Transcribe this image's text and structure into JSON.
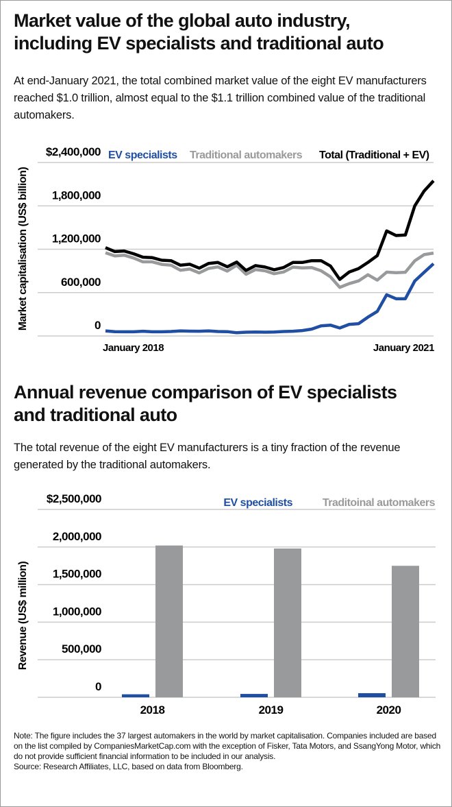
{
  "section1": {
    "title_line1": "Market value of the global auto industry,",
    "title_line2": "including EV specialists and traditional auto",
    "description": "At end-January 2021, the total combined market value of the eight EV manufacturers reached $1.0 trillion, almost equal to the $1.1 trillion combined value of the traditional automakers."
  },
  "section2": {
    "title_line1": "Annual revenue comparison of EV specialists",
    "title_line2": "and traditional auto",
    "description": "The total revenue of the eight EV manufacturers is a tiny fraction of the revenue generated by the traditional automakers."
  },
  "note": "Note: The figure includes the 37 largest automakers in the world by market capitalisation. Companies included are based on the list compiled by CompaniesMarketCap.com with the exception of Fisker, Tata Motors, and SsangYong Motor, which do not provide sufficient financial information to be included in our analysis.",
  "source": "Source: Research Affiliates, LLC, based on data from Bloomberg.",
  "colors": {
    "ev": "#1f4ea3",
    "traditional": "#999a9c",
    "total": "#000000",
    "grid": "#cccccc"
  },
  "chart_data": [
    {
      "type": "line",
      "ylabel": "Market capitalisation (US$ billion)",
      "ylim": [
        0,
        2400000
      ],
      "yticks": [
        0,
        600000,
        1200000,
        1800000,
        2400000
      ],
      "ytick_labels": [
        "0",
        "600,000",
        "1,200,000",
        "1,800,000",
        "$2,400,000"
      ],
      "x_labels": [
        "January 2018",
        "January 2021"
      ],
      "legend_position": "top",
      "grid": true,
      "series": [
        {
          "name": "EV specialists",
          "color_key": "ev",
          "values": [
            70000,
            60000,
            58000,
            58000,
            65000,
            58000,
            58000,
            62000,
            70000,
            66000,
            65000,
            70000,
            62000,
            60000,
            45000,
            52000,
            55000,
            52000,
            55000,
            62000,
            65000,
            75000,
            95000,
            140000,
            150000,
            110000,
            160000,
            170000,
            260000,
            340000,
            570000,
            515000,
            515000,
            760000,
            880000,
            1000000
          ]
        },
        {
          "name": "Traditional automakers",
          "color_key": "traditional",
          "values": [
            1152000,
            1108000,
            1117000,
            1079000,
            1025000,
            1025000,
            990000,
            980000,
            909000,
            926000,
            873000,
            934000,
            955000,
            897000,
            978000,
            854000,
            918000,
            902000,
            861000,
            885000,
            952000,
            942000,
            947000,
            902000,
            819000,
            673000,
            724000,
            762000,
            847000,
            772000,
            883000,
            875000,
            881000,
            1040000,
            1125000,
            1147000
          ]
        },
        {
          "name": "Total (Traditional + EV)",
          "color_key": "total",
          "values": [
            1222000,
            1168000,
            1175000,
            1137000,
            1090000,
            1083000,
            1048000,
            1042000,
            979000,
            992000,
            938000,
            1004000,
            1017000,
            957000,
            1023000,
            906000,
            973000,
            954000,
            916000,
            947000,
            1017000,
            1017000,
            1042000,
            1042000,
            969000,
            783000,
            884000,
            932000,
            1017000,
            1112000,
            1453000,
            1390000,
            1396000,
            1800000,
            2005000,
            2147000
          ]
        }
      ]
    },
    {
      "type": "bar",
      "ylabel": "Revenue (US$ million)",
      "ylim": [
        0,
        2500000
      ],
      "yticks": [
        0,
        500000,
        1000000,
        1500000,
        2000000,
        2500000
      ],
      "ytick_labels": [
        "0",
        "500,000",
        "1,000,000",
        "1,500,000",
        "2,000,000",
        "$2,500,000"
      ],
      "categories": [
        "2018",
        "2019",
        "2020"
      ],
      "legend_position": "top-right",
      "grid": true,
      "series": [
        {
          "name": "EV specialists",
          "color_key": "ev",
          "values": [
            40000,
            45000,
            55000
          ]
        },
        {
          "name": "Traditoinal automakers",
          "color_key": "traditional",
          "values": [
            2020000,
            1980000,
            1750000
          ]
        }
      ]
    }
  ]
}
